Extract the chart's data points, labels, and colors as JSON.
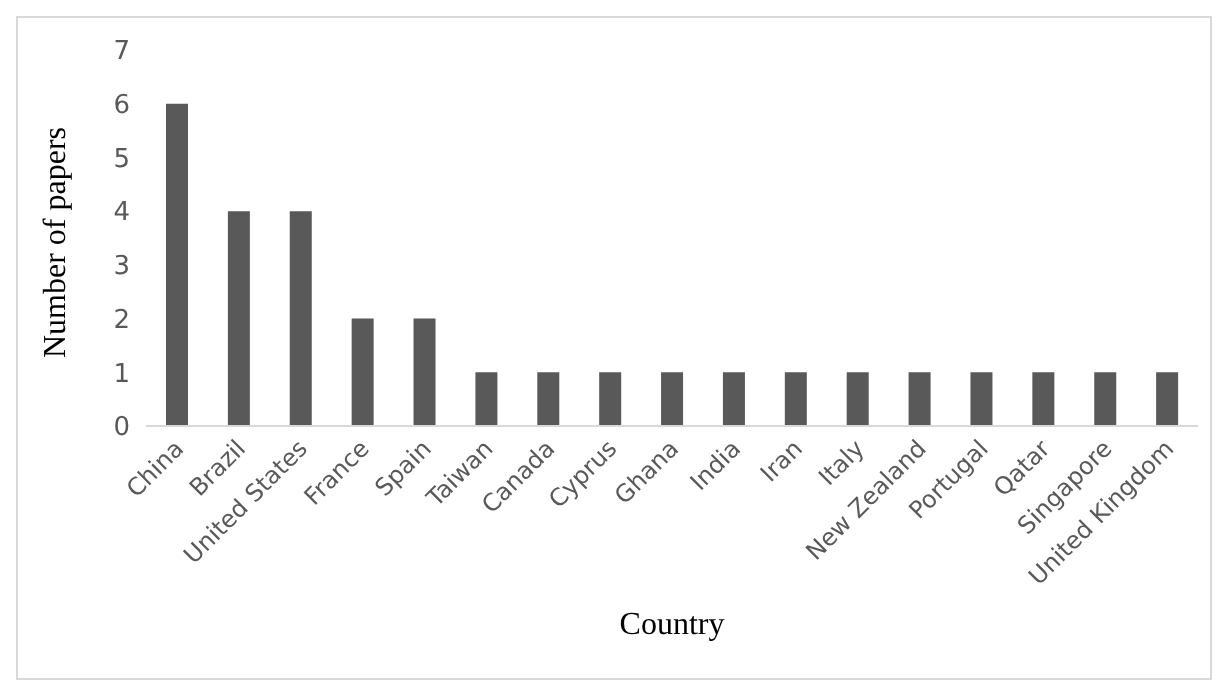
{
  "chart_data": {
    "type": "bar",
    "xlabel": "Country",
    "ylabel": "Number of papers",
    "categories": [
      "China",
      "Brazil",
      "United States",
      "France",
      "Spain",
      "Taiwan",
      "Canada",
      "Cyprus",
      "Ghana",
      "India",
      "Iran",
      "Italy",
      "New Zealand",
      "Portugal",
      "Qatar",
      "Singapore",
      "United Kingdom"
    ],
    "values": [
      6,
      4,
      4,
      2,
      2,
      1,
      1,
      1,
      1,
      1,
      1,
      1,
      1,
      1,
      1,
      1,
      1
    ],
    "color": "#595959",
    "ylim": [
      0,
      7
    ],
    "yticks": [
      0,
      1,
      2,
      3,
      4,
      5,
      6,
      7
    ],
    "grid": false,
    "legend": false
  }
}
